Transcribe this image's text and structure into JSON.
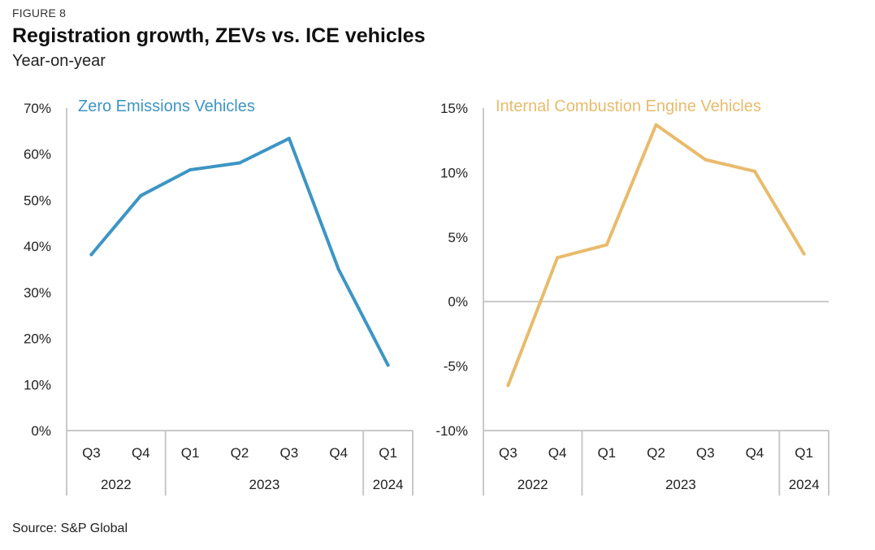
{
  "figure_label": "FIGURE 8",
  "title": "Registration growth, ZEVs vs. ICE vehicles",
  "subtitle": "Year-on-year",
  "source": "Source: S&P Global",
  "chart_data": [
    {
      "type": "line",
      "title": "Zero Emissions Vehicles",
      "color": "#3d95c4",
      "quarters": [
        "Q3",
        "Q4",
        "Q1",
        "Q2",
        "Q3",
        "Q4",
        "Q1"
      ],
      "years": [
        {
          "label": "2022",
          "count": 2
        },
        {
          "label": "2023",
          "count": 4
        },
        {
          "label": "2024",
          "count": 1
        }
      ],
      "values": [
        38.2,
        51,
        56.6,
        58.1,
        63.4,
        35,
        14.2
      ],
      "ylim": [
        0,
        70
      ],
      "yticks": [
        0,
        10,
        20,
        30,
        40,
        50,
        60,
        70
      ],
      "ytick_labels": [
        "0%",
        "10%",
        "20%",
        "30%",
        "40%",
        "50%",
        "60%",
        "70%"
      ],
      "zero_line": false
    },
    {
      "type": "line",
      "title": "Internal Combustion Engine Vehicles",
      "color": "#e8bb6c",
      "quarters": [
        "Q3",
        "Q4",
        "Q1",
        "Q2",
        "Q3",
        "Q4",
        "Q1"
      ],
      "years": [
        {
          "label": "2022",
          "count": 2
        },
        {
          "label": "2023",
          "count": 4
        },
        {
          "label": "2024",
          "count": 1
        }
      ],
      "values": [
        -6.5,
        3.4,
        4.4,
        13.7,
        11,
        10.1,
        3.7
      ],
      "ylim": [
        -10,
        15
      ],
      "yticks": [
        -10,
        -5,
        0,
        5,
        10,
        15
      ],
      "ytick_labels": [
        "-10%",
        "-5%",
        "0%",
        "5%",
        "10%",
        "15%"
      ],
      "zero_line": true
    }
  ]
}
